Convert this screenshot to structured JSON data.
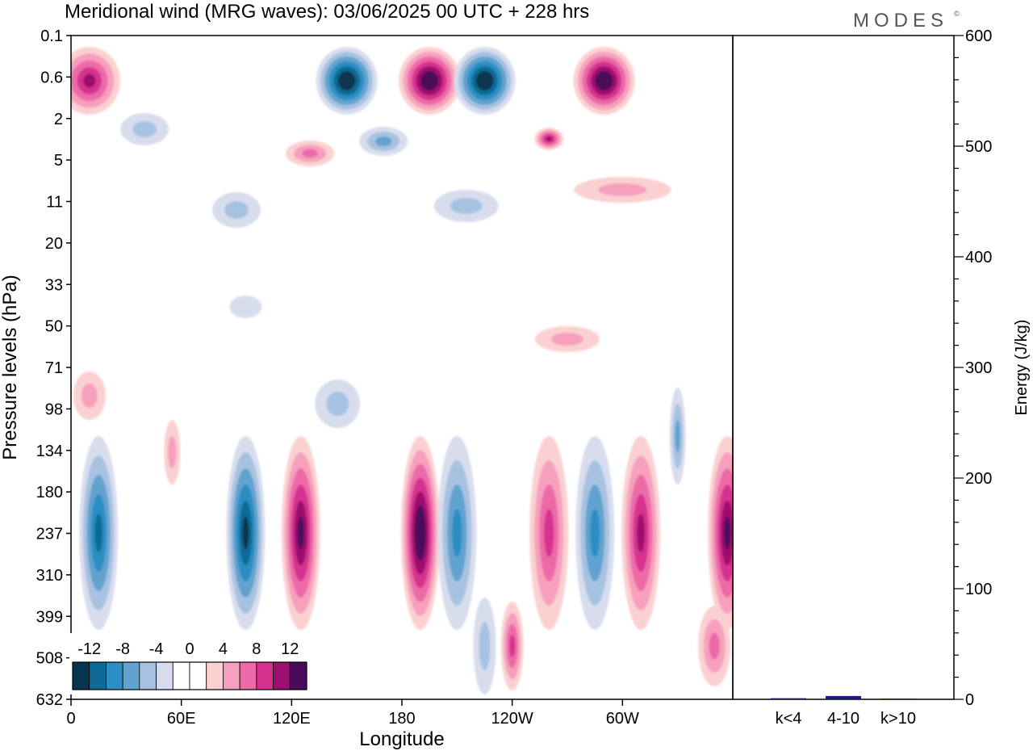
{
  "title": "Meridional wind (MRG waves):  03/06/2025  00 UTC  + 228 hrs",
  "brand": "MODES",
  "brand_mark": "©",
  "chart_data": [
    {
      "type": "heatmap",
      "title": "Meridional wind (MRG waves):  03/06/2025  00 UTC  + 228 hrs",
      "xlabel": "Longitude",
      "ylabel": "Pressure levels (hPa)",
      "x_ticks": [
        "0",
        "60E",
        "120E",
        "180",
        "120W",
        "60W"
      ],
      "x_tick_degrees": [
        0,
        60,
        120,
        180,
        240,
        300
      ],
      "xlim": [
        0,
        360
      ],
      "y_ticks": [
        "0.1",
        "0.6",
        "2",
        "5",
        "11",
        "20",
        "33",
        "50",
        "71",
        "98",
        "134",
        "180",
        "237",
        "310",
        "399",
        "508",
        "632"
      ],
      "y_axis_direction": "pressure decreasing upward",
      "colorbar": {
        "labels": [
          "-12",
          "-8",
          "-4",
          "0",
          "4",
          "8",
          "12"
        ],
        "colors": [
          "#07354f",
          "#0f6a96",
          "#2c8ec2",
          "#62a2cf",
          "#a7c2e0",
          "#d8ddee",
          "#ffffff",
          "#ffffff",
          "#fbd0d0",
          "#f6a0bd",
          "#ec6aa7",
          "#d6308f",
          "#9c0f6e",
          "#4a0a5a"
        ]
      },
      "features": [
        {
          "level": "upper (0.1-11 hPa)",
          "sign": "negative",
          "longitude": 150,
          "value": -14
        },
        {
          "level": "upper (0.1-11 hPa)",
          "sign": "positive",
          "longitude": 195,
          "value": 14
        },
        {
          "level": "upper (0.1-11 hPa)",
          "sign": "negative",
          "longitude": 225,
          "value": -14
        },
        {
          "level": "upper (0.1-11 hPa)",
          "sign": "positive",
          "longitude": 290,
          "value": 14
        },
        {
          "level": "upper (0.1-11 hPa)",
          "sign": "positive",
          "longitude": 10,
          "value": 10
        },
        {
          "level": "lower (134-508 hPa)",
          "sign": "negative",
          "longitude": 15,
          "value": -10
        },
        {
          "level": "lower (134-508 hPa)",
          "sign": "negative",
          "longitude": 95,
          "value": -12
        },
        {
          "level": "lower (134-508 hPa)",
          "sign": "positive",
          "longitude": 125,
          "value": 12
        },
        {
          "level": "lower (134-508 hPa)",
          "sign": "positive",
          "longitude": 190,
          "value": 14
        },
        {
          "level": "lower (134-508 hPa)",
          "sign": "negative",
          "longitude": 210,
          "value": -8
        },
        {
          "level": "lower (134-508 hPa)",
          "sign": "positive",
          "longitude": 260,
          "value": 8
        },
        {
          "level": "lower (134-508 hPa)",
          "sign": "negative",
          "longitude": 285,
          "value": -8
        },
        {
          "level": "lower (134-508 hPa)",
          "sign": "positive",
          "longitude": 310,
          "value": 10
        },
        {
          "level": "lower (134-508 hPa)",
          "sign": "positive",
          "longitude": 357,
          "value": 12
        }
      ]
    },
    {
      "type": "bar",
      "categories": [
        "k<4",
        "4-10",
        "k>10"
      ],
      "values": [
        1,
        3,
        0.5
      ],
      "ylabel": "Energy (J/kg)",
      "ylim": [
        0,
        600
      ],
      "y_ticks": [
        "0",
        "100",
        "200",
        "300",
        "400",
        "500",
        "600"
      ],
      "bar_color": "#1a1a8a"
    }
  ]
}
